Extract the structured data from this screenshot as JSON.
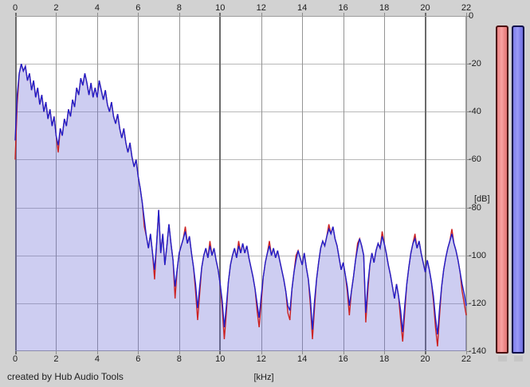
{
  "window": {
    "background": "#d2d2d2",
    "credit": "created by Hub Audio Tools"
  },
  "chart_data": {
    "type": "area",
    "title": "",
    "xlabel": "[kHz]",
    "ylabel": "[dB]",
    "xlim": [
      0,
      22
    ],
    "ylim": [
      -140,
      0
    ],
    "grid": true,
    "legend": "none",
    "x_ticks": [
      0,
      2,
      4,
      6,
      8,
      10,
      12,
      14,
      16,
      18,
      20,
      22
    ],
    "y_ticks": [
      0,
      -20,
      -40,
      -60,
      -80,
      -100,
      -120,
      -140
    ],
    "major_x_ticks": [
      0,
      10,
      20
    ],
    "x_step_khz": 0.1,
    "plot_bg": "#ffffff",
    "series": [
      {
        "name": "spectrum-left-channel",
        "color": "#2020cc",
        "fill": "rgba(104,104,214,0.33)",
        "values_db": [
          -52,
          -33,
          -24,
          -20,
          -23,
          -21,
          -27,
          -24,
          -31,
          -27,
          -34,
          -30,
          -37,
          -33,
          -40,
          -36,
          -43,
          -39,
          -46,
          -42,
          -50,
          -54,
          -47,
          -50,
          -43,
          -46,
          -39,
          -42,
          -35,
          -38,
          -30,
          -33,
          -26,
          -29,
          -24,
          -28,
          -33,
          -28,
          -34,
          -30,
          -34,
          -27,
          -31,
          -35,
          -31,
          -37,
          -40,
          -36,
          -42,
          -45,
          -41,
          -47,
          -51,
          -47,
          -53,
          -57,
          -53,
          -59,
          -63,
          -60,
          -67,
          -72,
          -78,
          -85,
          -92,
          -97,
          -91,
          -99,
          -106,
          -95,
          -81,
          -99,
          -91,
          -104,
          -96,
          -87,
          -95,
          -102,
          -113,
          -106,
          -99,
          -96,
          -93,
          -90,
          -95,
          -92,
          -99,
          -105,
          -112,
          -122,
          -113,
          -105,
          -100,
          -97,
          -101,
          -96,
          -100,
          -97,
          -102,
          -106,
          -112,
          -119,
          -130,
          -121,
          -111,
          -104,
          -100,
          -97,
          -101,
          -96,
          -99,
          -95,
          -99,
          -96,
          -101,
          -105,
          -109,
          -114,
          -120,
          -126,
          -117,
          -109,
          -103,
          -99,
          -96,
          -100,
          -97,
          -101,
          -98,
          -102,
          -106,
          -110,
          -115,
          -121,
          -123,
          -114,
          -107,
          -102,
          -98,
          -101,
          -104,
          -99,
          -105,
          -110,
          -118,
          -131,
          -119,
          -110,
          -103,
          -97,
          -94,
          -96,
          -92,
          -89,
          -91,
          -88,
          -93,
          -96,
          -101,
          -106,
          -103,
          -108,
          -113,
          -121,
          -115,
          -109,
          -102,
          -97,
          -93,
          -96,
          -100,
          -124,
          -112,
          -104,
          -99,
          -103,
          -98,
          -95,
          -97,
          -92,
          -95,
          -99,
          -104,
          -108,
          -113,
          -118,
          -112,
          -117,
          -123,
          -132,
          -121,
          -112,
          -105,
          -99,
          -95,
          -93,
          -97,
          -94,
          -99,
          -103,
          -107,
          -102,
          -106,
          -111,
          -117,
          -126,
          -133,
          -122,
          -113,
          -106,
          -101,
          -97,
          -94,
          -91,
          -95,
          -98,
          -102,
          -107,
          -112,
          -116,
          -121
        ]
      },
      {
        "name": "spectrum-right-channel",
        "color": "#cc2222",
        "base": "spectrum-left-channel",
        "delta_db": {
          "0": -8,
          "1": -4,
          "21": -3,
          "63": -3,
          "68": -4,
          "78": -5,
          "83": 2,
          "88": -3,
          "89": -5,
          "90": -3,
          "95": 2,
          "101": -3,
          "102": -5,
          "103": -3,
          "109": 2,
          "118": -3,
          "119": -4,
          "120": -3,
          "124": 2,
          "133": -3,
          "134": -4,
          "137": 2,
          "144": -3,
          "145": -4,
          "146": -3,
          "153": 2,
          "162": -2,
          "163": -4,
          "167": 2,
          "171": -4,
          "172": -3,
          "179": 2,
          "188": -4,
          "189": -4,
          "190": -3,
          "195": 2,
          "204": -2,
          "205": -4,
          "206": -5,
          "207": -3,
          "213": 2,
          "218": -3,
          "219": -4,
          "220": -4
        }
      }
    ]
  },
  "meters": {
    "left": {
      "name": "level-meter-left",
      "fill": "#ee8b8b",
      "border": "#4a0d0d"
    },
    "right": {
      "name": "level-meter-right",
      "fill": "#8585ee",
      "border": "#0d0d4a"
    }
  }
}
